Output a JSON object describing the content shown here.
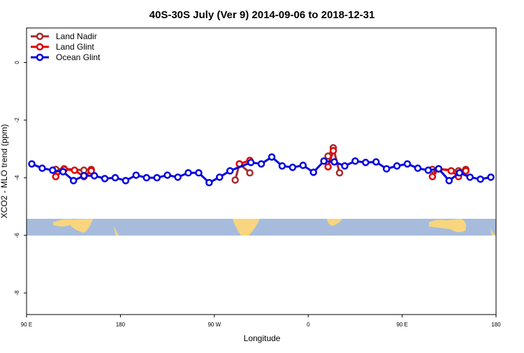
{
  "chart_data": {
    "type": "line",
    "title": "40S-30S July (Ver 9)   2014-09-06 to 2018-12-31",
    "x_label": "Longitude",
    "y_label": "XCO2 - MLO trend (ppm)",
    "xlim": [
      90,
      540
    ],
    "xticks": [
      {
        "value": 90,
        "label": "90 E"
      },
      180,
      {
        "value": 270,
        "label": "90 W"
      },
      {
        "value": 360,
        "label": "0"
      },
      {
        "value": 450,
        "label": "90 E"
      },
      {
        "value": 540,
        "label": "180"
      }
    ],
    "ylim": [
      -8.75,
      1.2
    ],
    "yticks": [
      0,
      -2,
      -4,
      -6,
      -8
    ],
    "legend": "top-left",
    "series": [
      {
        "name": "Land Nadir",
        "color": "#a52a2a",
        "x": [
          118,
          126,
          145,
          152,
          null,
          290,
          294,
          304,
          null,
          379,
          384,
          390,
          null,
          479,
          485,
          504,
          511
        ],
        "values": [
          -3.71,
          -3.69,
          -3.74,
          -3.71,
          null,
          -4.08,
          -3.52,
          -3.83,
          null,
          -3.25,
          -2.96,
          -3.83,
          null,
          -3.71,
          -3.69,
          -3.76,
          -3.71
        ]
      },
      {
        "name": "Land Glint",
        "color": "#e00000",
        "x": [
          118,
          126,
          136,
          145,
          152,
          null,
          294,
          304,
          null,
          379,
          384,
          null,
          479,
          485,
          497,
          504,
          511
        ],
        "values": [
          -3.96,
          -3.71,
          -3.74,
          -3.96,
          -3.76,
          null,
          -3.52,
          -3.4,
          null,
          -3.62,
          -3.06,
          null,
          -3.96,
          -3.69,
          -3.76,
          -3.96,
          -3.76
        ]
      },
      {
        "name": "Ocean Glint",
        "color": "#0000e0",
        "x": [
          95,
          105,
          115,
          125,
          135,
          145,
          155,
          165,
          175,
          185,
          195,
          205,
          215,
          225,
          235,
          245,
          255,
          265,
          275,
          285,
          305,
          315,
          325,
          335,
          345,
          355,
          365,
          375,
          385,
          395,
          405,
          415,
          425,
          435,
          445,
          455,
          465,
          475,
          485,
          495,
          505,
          515,
          525,
          535
        ],
        "values": [
          -3.52,
          -3.67,
          -3.74,
          -3.79,
          -4.1,
          -3.93,
          -3.93,
          -4.03,
          -4.0,
          -4.1,
          -3.91,
          -4.0,
          -4.0,
          -3.91,
          -3.98,
          -3.83,
          -3.83,
          -4.17,
          -3.98,
          -3.76,
          -3.47,
          -3.52,
          -3.28,
          -3.59,
          -3.64,
          -3.57,
          -3.81,
          -3.42,
          -3.45,
          -3.59,
          -3.42,
          -3.47,
          -3.45,
          -3.69,
          -3.59,
          -3.52,
          -3.67,
          -3.74,
          -3.69,
          -4.1,
          -3.83,
          -3.98,
          -4.05,
          -3.98
        ]
      }
    ]
  }
}
